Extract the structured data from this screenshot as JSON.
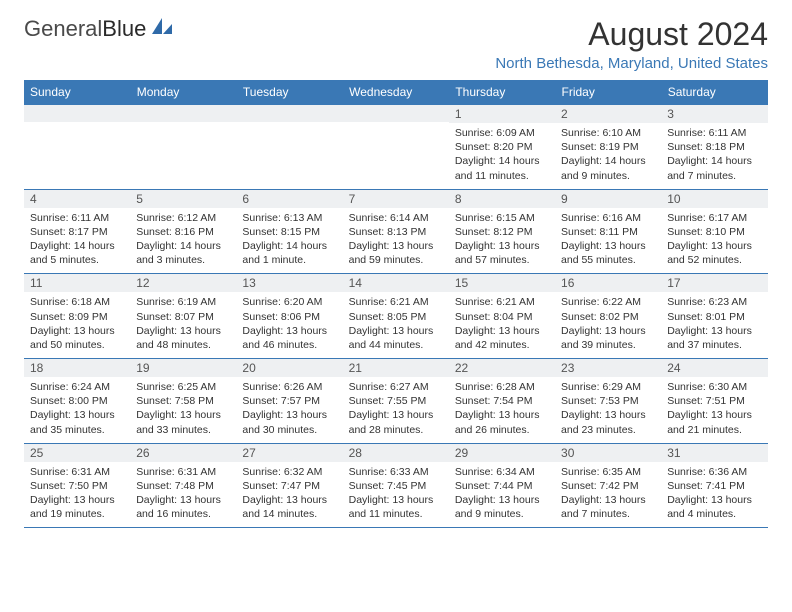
{
  "logo": {
    "part1": "General",
    "part2": "Blue"
  },
  "title": "August 2024",
  "location": "North Bethesda, Maryland, United States",
  "colors": {
    "accent": "#3a78b5",
    "band": "#eef0f2",
    "text": "#333333",
    "logo_gray": "#4a4a4a"
  },
  "day_names": [
    "Sunday",
    "Monday",
    "Tuesday",
    "Wednesday",
    "Thursday",
    "Friday",
    "Saturday"
  ],
  "weeks": [
    [
      {
        "num": "",
        "sunrise": "",
        "sunset": "",
        "daylight": ""
      },
      {
        "num": "",
        "sunrise": "",
        "sunset": "",
        "daylight": ""
      },
      {
        "num": "",
        "sunrise": "",
        "sunset": "",
        "daylight": ""
      },
      {
        "num": "",
        "sunrise": "",
        "sunset": "",
        "daylight": ""
      },
      {
        "num": "1",
        "sunrise": "Sunrise: 6:09 AM",
        "sunset": "Sunset: 8:20 PM",
        "daylight": "Daylight: 14 hours and 11 minutes."
      },
      {
        "num": "2",
        "sunrise": "Sunrise: 6:10 AM",
        "sunset": "Sunset: 8:19 PM",
        "daylight": "Daylight: 14 hours and 9 minutes."
      },
      {
        "num": "3",
        "sunrise": "Sunrise: 6:11 AM",
        "sunset": "Sunset: 8:18 PM",
        "daylight": "Daylight: 14 hours and 7 minutes."
      }
    ],
    [
      {
        "num": "4",
        "sunrise": "Sunrise: 6:11 AM",
        "sunset": "Sunset: 8:17 PM",
        "daylight": "Daylight: 14 hours and 5 minutes."
      },
      {
        "num": "5",
        "sunrise": "Sunrise: 6:12 AM",
        "sunset": "Sunset: 8:16 PM",
        "daylight": "Daylight: 14 hours and 3 minutes."
      },
      {
        "num": "6",
        "sunrise": "Sunrise: 6:13 AM",
        "sunset": "Sunset: 8:15 PM",
        "daylight": "Daylight: 14 hours and 1 minute."
      },
      {
        "num": "7",
        "sunrise": "Sunrise: 6:14 AM",
        "sunset": "Sunset: 8:13 PM",
        "daylight": "Daylight: 13 hours and 59 minutes."
      },
      {
        "num": "8",
        "sunrise": "Sunrise: 6:15 AM",
        "sunset": "Sunset: 8:12 PM",
        "daylight": "Daylight: 13 hours and 57 minutes."
      },
      {
        "num": "9",
        "sunrise": "Sunrise: 6:16 AM",
        "sunset": "Sunset: 8:11 PM",
        "daylight": "Daylight: 13 hours and 55 minutes."
      },
      {
        "num": "10",
        "sunrise": "Sunrise: 6:17 AM",
        "sunset": "Sunset: 8:10 PM",
        "daylight": "Daylight: 13 hours and 52 minutes."
      }
    ],
    [
      {
        "num": "11",
        "sunrise": "Sunrise: 6:18 AM",
        "sunset": "Sunset: 8:09 PM",
        "daylight": "Daylight: 13 hours and 50 minutes."
      },
      {
        "num": "12",
        "sunrise": "Sunrise: 6:19 AM",
        "sunset": "Sunset: 8:07 PM",
        "daylight": "Daylight: 13 hours and 48 minutes."
      },
      {
        "num": "13",
        "sunrise": "Sunrise: 6:20 AM",
        "sunset": "Sunset: 8:06 PM",
        "daylight": "Daylight: 13 hours and 46 minutes."
      },
      {
        "num": "14",
        "sunrise": "Sunrise: 6:21 AM",
        "sunset": "Sunset: 8:05 PM",
        "daylight": "Daylight: 13 hours and 44 minutes."
      },
      {
        "num": "15",
        "sunrise": "Sunrise: 6:21 AM",
        "sunset": "Sunset: 8:04 PM",
        "daylight": "Daylight: 13 hours and 42 minutes."
      },
      {
        "num": "16",
        "sunrise": "Sunrise: 6:22 AM",
        "sunset": "Sunset: 8:02 PM",
        "daylight": "Daylight: 13 hours and 39 minutes."
      },
      {
        "num": "17",
        "sunrise": "Sunrise: 6:23 AM",
        "sunset": "Sunset: 8:01 PM",
        "daylight": "Daylight: 13 hours and 37 minutes."
      }
    ],
    [
      {
        "num": "18",
        "sunrise": "Sunrise: 6:24 AM",
        "sunset": "Sunset: 8:00 PM",
        "daylight": "Daylight: 13 hours and 35 minutes."
      },
      {
        "num": "19",
        "sunrise": "Sunrise: 6:25 AM",
        "sunset": "Sunset: 7:58 PM",
        "daylight": "Daylight: 13 hours and 33 minutes."
      },
      {
        "num": "20",
        "sunrise": "Sunrise: 6:26 AM",
        "sunset": "Sunset: 7:57 PM",
        "daylight": "Daylight: 13 hours and 30 minutes."
      },
      {
        "num": "21",
        "sunrise": "Sunrise: 6:27 AM",
        "sunset": "Sunset: 7:55 PM",
        "daylight": "Daylight: 13 hours and 28 minutes."
      },
      {
        "num": "22",
        "sunrise": "Sunrise: 6:28 AM",
        "sunset": "Sunset: 7:54 PM",
        "daylight": "Daylight: 13 hours and 26 minutes."
      },
      {
        "num": "23",
        "sunrise": "Sunrise: 6:29 AM",
        "sunset": "Sunset: 7:53 PM",
        "daylight": "Daylight: 13 hours and 23 minutes."
      },
      {
        "num": "24",
        "sunrise": "Sunrise: 6:30 AM",
        "sunset": "Sunset: 7:51 PM",
        "daylight": "Daylight: 13 hours and 21 minutes."
      }
    ],
    [
      {
        "num": "25",
        "sunrise": "Sunrise: 6:31 AM",
        "sunset": "Sunset: 7:50 PM",
        "daylight": "Daylight: 13 hours and 19 minutes."
      },
      {
        "num": "26",
        "sunrise": "Sunrise: 6:31 AM",
        "sunset": "Sunset: 7:48 PM",
        "daylight": "Daylight: 13 hours and 16 minutes."
      },
      {
        "num": "27",
        "sunrise": "Sunrise: 6:32 AM",
        "sunset": "Sunset: 7:47 PM",
        "daylight": "Daylight: 13 hours and 14 minutes."
      },
      {
        "num": "28",
        "sunrise": "Sunrise: 6:33 AM",
        "sunset": "Sunset: 7:45 PM",
        "daylight": "Daylight: 13 hours and 11 minutes."
      },
      {
        "num": "29",
        "sunrise": "Sunrise: 6:34 AM",
        "sunset": "Sunset: 7:44 PM",
        "daylight": "Daylight: 13 hours and 9 minutes."
      },
      {
        "num": "30",
        "sunrise": "Sunrise: 6:35 AM",
        "sunset": "Sunset: 7:42 PM",
        "daylight": "Daylight: 13 hours and 7 minutes."
      },
      {
        "num": "31",
        "sunrise": "Sunrise: 6:36 AM",
        "sunset": "Sunset: 7:41 PM",
        "daylight": "Daylight: 13 hours and 4 minutes."
      }
    ]
  ]
}
